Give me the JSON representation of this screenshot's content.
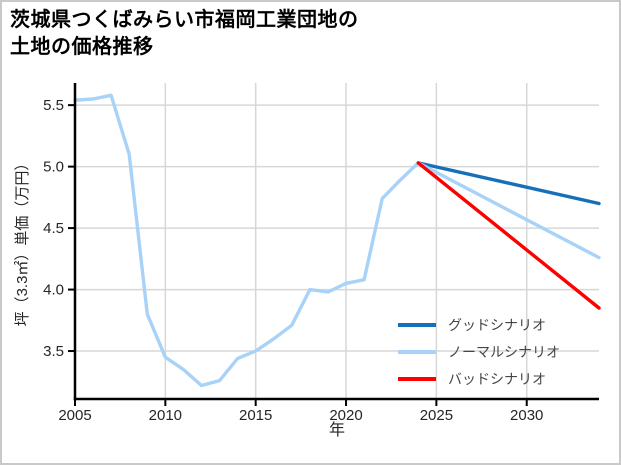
{
  "title": {
    "line1": "茨城県つくばみらい市福岡工業団地の",
    "line2": "土地の価格推移"
  },
  "chart_data": {
    "type": "line",
    "title": "茨城県つくばみらい市福岡工業団地の土地の価格推移",
    "xlabel": "年",
    "ylabel": "坪（3.3㎡）単価（万円）",
    "xlim": [
      2005,
      2034
    ],
    "ylim": [
      3.11,
      5.68
    ],
    "x_ticks": [
      2005,
      2010,
      2015,
      2020,
      2025,
      2030
    ],
    "y_ticks": [
      3.5,
      4.0,
      4.5,
      5.0,
      5.5
    ],
    "grid": true,
    "legend_position": "inside-lower-right",
    "series": [
      {
        "id": "history",
        "label": "",
        "color": "#a8d2f7",
        "x": [
          2005,
          2006,
          2007,
          2008,
          2009,
          2010,
          2011,
          2012,
          2013,
          2014,
          2015,
          2016,
          2017,
          2018,
          2019,
          2020,
          2021,
          2022,
          2023,
          2024
        ],
        "y": [
          5.54,
          5.55,
          5.58,
          5.1,
          3.8,
          3.45,
          3.35,
          3.22,
          3.26,
          3.44,
          3.5,
          3.6,
          3.71,
          4.0,
          3.98,
          4.05,
          4.08,
          4.74,
          4.89,
          5.03
        ]
      },
      {
        "id": "good",
        "label": "グッドシナリオ",
        "color": "#1670b9",
        "x": [
          2024,
          2034
        ],
        "y": [
          5.03,
          4.7
        ]
      },
      {
        "id": "normal",
        "label": "ノーマルシナリオ",
        "color": "#a8d2f7",
        "x": [
          2024,
          2034
        ],
        "y": [
          5.03,
          4.26
        ]
      },
      {
        "id": "bad",
        "label": "バッドシナリオ",
        "color": "#fe0000",
        "x": [
          2024,
          2034
        ],
        "y": [
          5.03,
          3.85
        ]
      }
    ],
    "colors": {
      "grid": "#d7d7d7",
      "axis": "#000000",
      "tick_text": "#262626",
      "legend_text": "#454545",
      "frame_border": "#c9c9c9"
    }
  }
}
